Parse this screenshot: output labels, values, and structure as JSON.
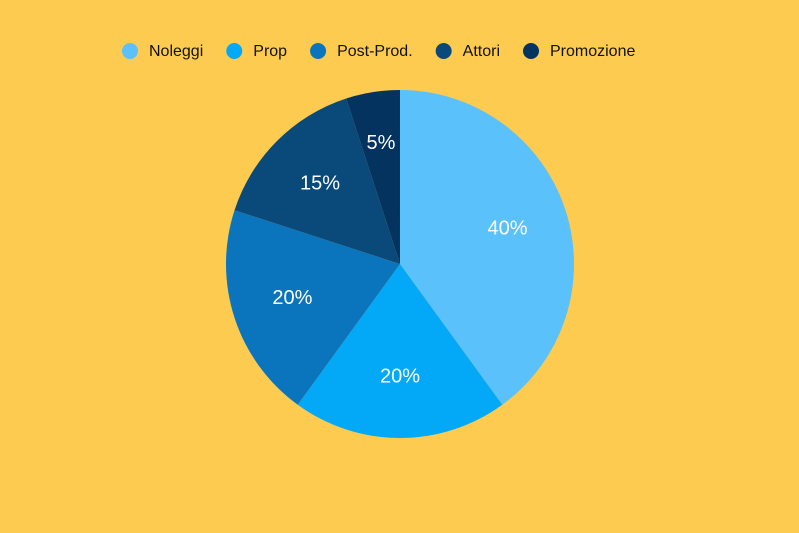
{
  "chart_data": {
    "type": "pie",
    "categories": [
      "Noleggi",
      "Prop",
      "Post-Prod.",
      "Attori",
      "Promozione"
    ],
    "values": [
      40,
      20,
      20,
      15,
      5
    ],
    "value_labels": [
      "40%",
      "20%",
      "20%",
      "15%",
      "5%"
    ],
    "colors": [
      "#5ac1fb",
      "#03a8f7",
      "#0a75bd",
      "#0a4a7b",
      "#05335f"
    ],
    "legend": "top"
  }
}
